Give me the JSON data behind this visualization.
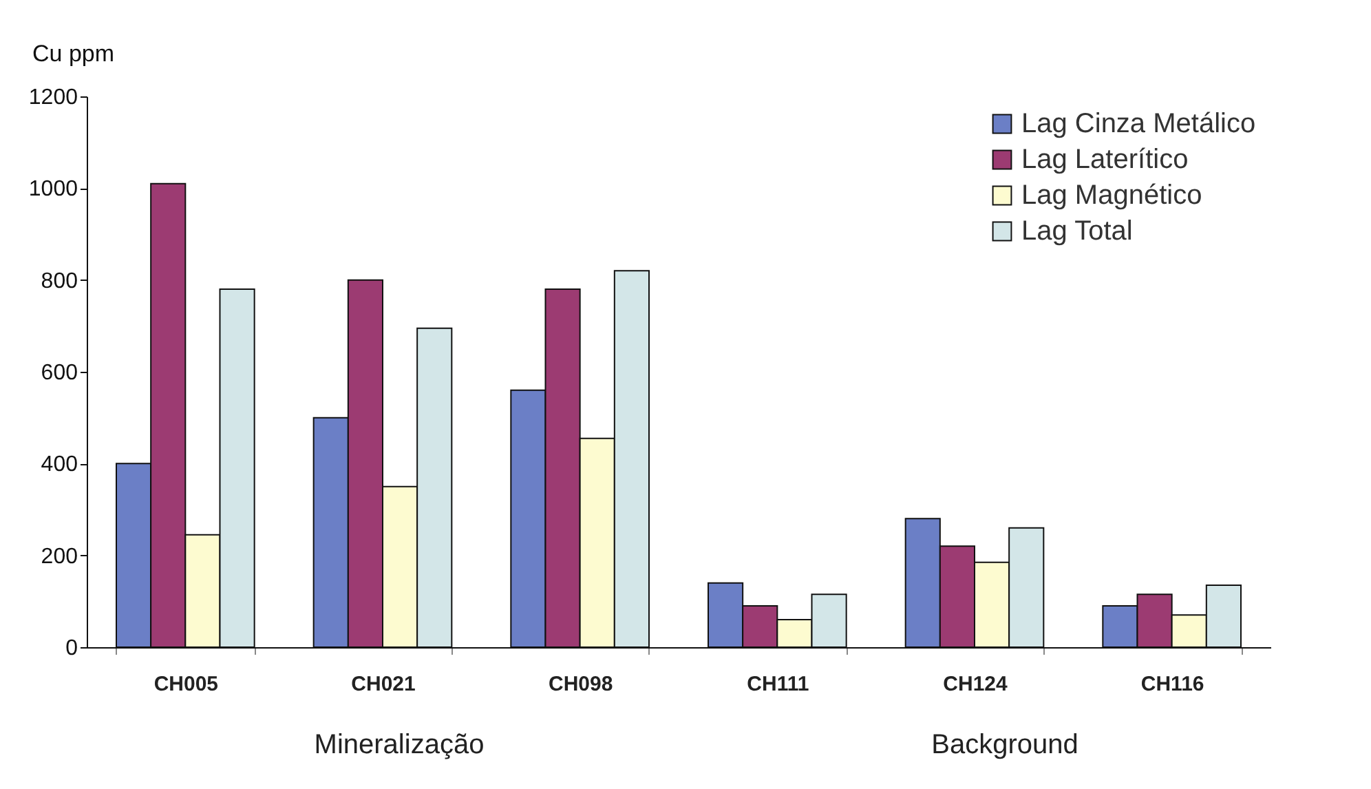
{
  "chart_data": {
    "type": "bar",
    "ylabel": "Cu ppm",
    "categories": [
      "CH005",
      "CH021",
      "CH098",
      "CH111",
      "CH124",
      "CH116"
    ],
    "series": [
      {
        "name": "Lag Cinza Metálico",
        "color": "#6b7fc6",
        "values": [
          400,
          500,
          560,
          140,
          280,
          90
        ]
      },
      {
        "name": "Lag Laterítico",
        "color": "#9c3b72",
        "values": [
          1010,
          800,
          780,
          90,
          220,
          115
        ]
      },
      {
        "name": "Lag Magnético",
        "color": "#fdfbd0",
        "values": [
          245,
          350,
          455,
          60,
          185,
          70
        ]
      },
      {
        "name": "Lag Total",
        "color": "#d3e6e8",
        "values": [
          780,
          695,
          820,
          115,
          260,
          135
        ]
      }
    ],
    "ylim": [
      0,
      1200
    ],
    "yticks": [
      0,
      200,
      400,
      600,
      800,
      1000,
      1200
    ],
    "grid": false,
    "legend": "top right",
    "annotations": [
      "Mineralização",
      "Background"
    ]
  }
}
